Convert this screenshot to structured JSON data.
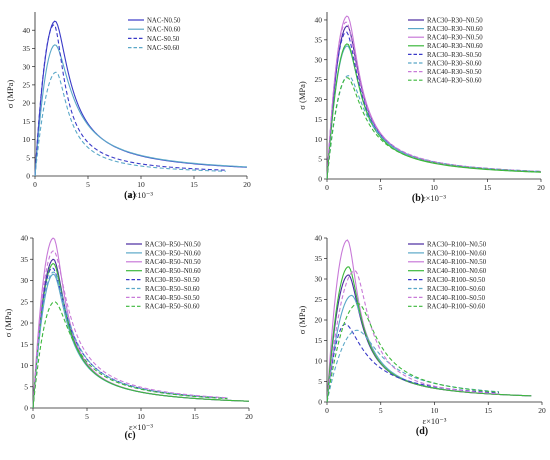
{
  "figure": {
    "panels": [
      "(a)",
      "(b)",
      "(c)",
      "(d)"
    ]
  },
  "chart_data": [
    {
      "type": "line",
      "panel_label": "(a)",
      "xlabel": "ε×10⁻³",
      "ylabel": "σ (MPa)",
      "xlim": [
        0,
        20
      ],
      "ylim": [
        0,
        45
      ],
      "xticks": [
        0,
        5,
        10,
        15,
        20
      ],
      "yticks": [
        0,
        5,
        10,
        15,
        20,
        25,
        30,
        35,
        40
      ],
      "grid": false,
      "legend_position": "top-right",
      "series": [
        {
          "name": "NAC-N0.50",
          "color": "#3a3ac8",
          "dash": "solid",
          "peak": 42.5,
          "peak_x": 1.9,
          "end_x": 20,
          "end_y": 2.4
        },
        {
          "name": "NAC-N0.60",
          "color": "#5ba8c8",
          "dash": "solid",
          "peak": 36.0,
          "peak_x": 1.9,
          "end_x": 20,
          "end_y": 2.5
        },
        {
          "name": "NAC-S0.50",
          "color": "#3a3ac8",
          "dash": "dashed",
          "peak": 41.5,
          "peak_x": 1.8,
          "end_x": 18,
          "end_y": 1.6
        },
        {
          "name": "NAC-S0.60",
          "color": "#5ba8c8",
          "dash": "dashed",
          "peak": 28.5,
          "peak_x": 2.0,
          "end_x": 18,
          "end_y": 1.3
        }
      ]
    },
    {
      "type": "line",
      "panel_label": "(b)",
      "xlabel": "ε×10⁻³",
      "ylabel": "σ (MPa)",
      "xlim": [
        0,
        20
      ],
      "ylim": [
        0,
        42
      ],
      "xticks": [
        0,
        5,
        10,
        15,
        20
      ],
      "yticks": [
        0,
        5,
        10,
        15,
        20,
        25,
        30,
        35,
        40
      ],
      "grid": false,
      "legend_position": "top-right",
      "series": [
        {
          "name": "RAC30–R30–N0.50",
          "color": "#4a2aa0",
          "dash": "solid",
          "peak": 38.5,
          "peak_x": 1.9,
          "end_x": 20,
          "end_y": 1.8
        },
        {
          "name": "RAC30–R30–N0.60",
          "color": "#5ba8c8",
          "dash": "solid",
          "peak": 33.5,
          "peak_x": 1.9,
          "end_x": 20,
          "end_y": 1.8
        },
        {
          "name": "RAC40–R30–N0.50",
          "color": "#c87ad8",
          "dash": "solid",
          "peak": 41.0,
          "peak_x": 1.9,
          "end_x": 20,
          "end_y": 1.8
        },
        {
          "name": "RAC40–R30–N0.60",
          "color": "#3cb83c",
          "dash": "solid",
          "peak": 34.0,
          "peak_x": 1.9,
          "end_x": 20,
          "end_y": 1.7
        },
        {
          "name": "RAC30–R30–S0.50",
          "color": "#3a3ac8",
          "dash": "dashed",
          "peak": 37.0,
          "peak_x": 1.8,
          "end_x": 20,
          "end_y": 1.9
        },
        {
          "name": "RAC30–R30–S0.60",
          "color": "#5ba8c8",
          "dash": "dashed",
          "peak": 26.0,
          "peak_x": 2.0,
          "end_x": 20,
          "end_y": 1.9
        },
        {
          "name": "RAC40–R30–S0.50",
          "color": "#c87ad8",
          "dash": "dashed",
          "peak": 39.5,
          "peak_x": 1.8,
          "end_x": 20,
          "end_y": 1.9
        },
        {
          "name": "RAC40–R30–S0.60",
          "color": "#3cb83c",
          "dash": "dashed",
          "peak": 25.5,
          "peak_x": 1.9,
          "end_x": 20,
          "end_y": 1.8
        }
      ]
    },
    {
      "type": "line",
      "panel_label": "(c)",
      "xlabel": "ε×10⁻³",
      "ylabel": "σ (MPa)",
      "xlim": [
        0,
        20
      ],
      "ylim": [
        0,
        40
      ],
      "xticks": [
        0,
        5,
        10,
        15,
        20
      ],
      "yticks": [
        0,
        5,
        10,
        15,
        20,
        25,
        30,
        35,
        40
      ],
      "grid": false,
      "legend_position": "top-right",
      "series": [
        {
          "name": "RAC30–R50–N0.50",
          "color": "#4a2aa0",
          "dash": "solid",
          "peak": 35.0,
          "peak_x": 1.9,
          "end_x": 20,
          "end_y": 1.6
        },
        {
          "name": "RAC30–R50–N0.60",
          "color": "#5ba8c8",
          "dash": "solid",
          "peak": 31.5,
          "peak_x": 1.9,
          "end_x": 20,
          "end_y": 1.6
        },
        {
          "name": "RAC40–R50–N0.50",
          "color": "#c87ad8",
          "dash": "solid",
          "peak": 40.0,
          "peak_x": 1.9,
          "end_x": 20,
          "end_y": 1.6
        },
        {
          "name": "RAC40–R50–N0.60",
          "color": "#3cb83c",
          "dash": "solid",
          "peak": 34.0,
          "peak_x": 1.9,
          "end_x": 20,
          "end_y": 1.6
        },
        {
          "name": "RAC30–R50–S0.50",
          "color": "#3a3ac8",
          "dash": "dashed",
          "peak": 33.0,
          "peak_x": 1.8,
          "end_x": 18,
          "end_y": 2.3
        },
        {
          "name": "RAC30–R50–S0.60",
          "color": "#5ba8c8",
          "dash": "dashed",
          "peak": 32.0,
          "peak_x": 1.9,
          "end_x": 17,
          "end_y": 2.4
        },
        {
          "name": "RAC40–R50–S0.50",
          "color": "#c87ad8",
          "dash": "dashed",
          "peak": 37.0,
          "peak_x": 1.9,
          "end_x": 18,
          "end_y": 2.4
        },
        {
          "name": "RAC40–R50–S0.60",
          "color": "#3cb83c",
          "dash": "dashed",
          "peak": 25.0,
          "peak_x": 2.0,
          "end_x": 18,
          "end_y": 2.2
        }
      ]
    },
    {
      "type": "line",
      "panel_label": "(d)",
      "xlabel": "ε×10⁻³",
      "ylabel": "σ (MPa)",
      "xlim": [
        0,
        20
      ],
      "ylim": [
        0,
        40
      ],
      "xticks": [
        0,
        5,
        10,
        15,
        20
      ],
      "yticks": [
        0,
        5,
        10,
        15,
        20,
        25,
        30,
        35,
        40
      ],
      "grid": false,
      "legend_position": "top-right",
      "series": [
        {
          "name": "RAC30–R100–N0.50",
          "color": "#4a2aa0",
          "dash": "solid",
          "peak": 31.0,
          "peak_x": 2.0,
          "end_x": 19,
          "end_y": 1.5
        },
        {
          "name": "RAC30–R100–N0.60",
          "color": "#5ba8c8",
          "dash": "solid",
          "peak": 26.0,
          "peak_x": 2.3,
          "end_x": 19,
          "end_y": 1.5
        },
        {
          "name": "RAC40–R100–N0.50",
          "color": "#c87ad8",
          "dash": "solid",
          "peak": 39.5,
          "peak_x": 1.9,
          "end_x": 19,
          "end_y": 1.5
        },
        {
          "name": "RAC40–R100–N0.60",
          "color": "#3cb83c",
          "dash": "solid",
          "peak": 33.0,
          "peak_x": 2.0,
          "end_x": 19,
          "end_y": 1.5
        },
        {
          "name": "RAC30–R100–S0.50",
          "color": "#3a3ac8",
          "dash": "dashed",
          "peak": 19.0,
          "peak_x": 1.7,
          "end_x": 16,
          "end_y": 2.2
        },
        {
          "name": "RAC30–R100–S0.60",
          "color": "#5ba8c8",
          "dash": "dashed",
          "peak": 17.5,
          "peak_x": 2.8,
          "end_x": 16,
          "end_y": 2.5
        },
        {
          "name": "RAC40–R100–S0.50",
          "color": "#c87ad8",
          "dash": "dashed",
          "peak": 32.0,
          "peak_x": 2.6,
          "end_x": 16,
          "end_y": 2.0
        },
        {
          "name": "RAC40–R100–S0.60",
          "color": "#3cb83c",
          "dash": "dashed",
          "peak": 24.0,
          "peak_x": 2.9,
          "end_x": 16,
          "end_y": 2.4
        }
      ]
    }
  ]
}
